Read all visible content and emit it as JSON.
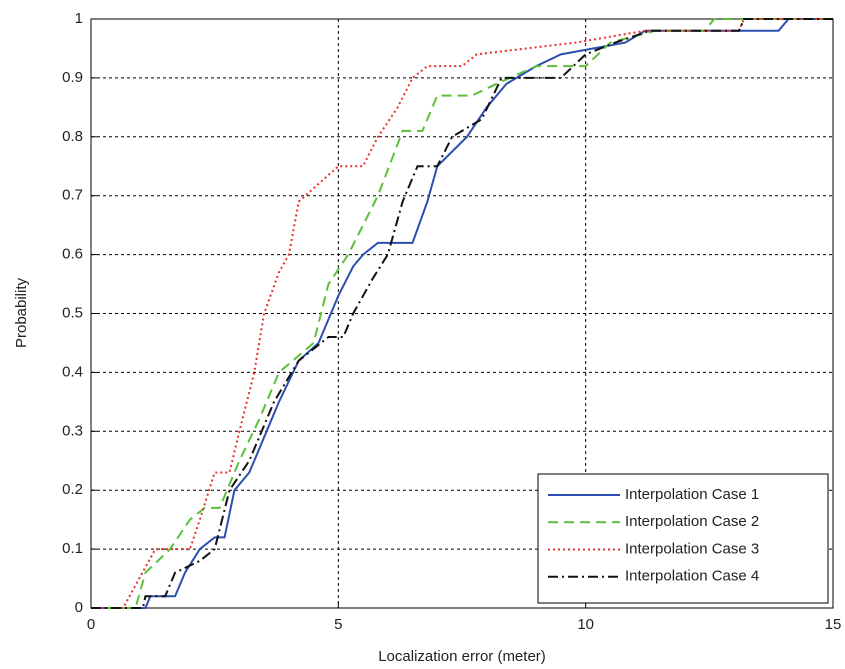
{
  "chart_data": {
    "type": "line",
    "xlabel": "Localization error (meter)",
    "ylabel": "Probability",
    "xlim": [
      0,
      15
    ],
    "ylim": [
      0,
      1
    ],
    "xticks": [
      0,
      5,
      10,
      15
    ],
    "yticks": [
      0,
      0.1,
      0.2,
      0.3,
      0.4,
      0.5,
      0.6,
      0.7,
      0.8,
      0.9,
      1
    ],
    "grid": true,
    "legend_loc": "lower right",
    "series": [
      {
        "name": "Interpolation Case 1",
        "color": "#2a4fb0",
        "dash": "solid",
        "x": [
          0,
          1.1,
          1.2,
          1.7,
          1.9,
          2.2,
          2.5,
          2.7,
          2.9,
          3.2,
          3.5,
          3.8,
          4.2,
          4.6,
          5.0,
          5.3,
          5.5,
          5.8,
          6.5,
          6.8,
          7.0,
          7.6,
          8.0,
          8.4,
          9.0,
          9.5,
          10.8,
          11.2,
          13.9,
          14.1,
          15
        ],
        "values": [
          0,
          0,
          0.02,
          0.02,
          0.06,
          0.1,
          0.12,
          0.12,
          0.2,
          0.23,
          0.29,
          0.35,
          0.42,
          0.45,
          0.53,
          0.58,
          0.6,
          0.62,
          0.62,
          0.69,
          0.75,
          0.8,
          0.85,
          0.89,
          0.92,
          0.94,
          0.96,
          0.98,
          0.98,
          1,
          1
        ]
      },
      {
        "name": "Interpolation Case 2",
        "color": "#5cbf3a",
        "dash": "dashed",
        "x": [
          0,
          0.9,
          1.1,
          1.6,
          2.0,
          2.3,
          2.6,
          3.0,
          3.4,
          3.8,
          4.5,
          4.8,
          5.2,
          5.5,
          5.8,
          6.3,
          6.7,
          7.0,
          7.7,
          8.2,
          9.0,
          10.0,
          10.5,
          11.4,
          12.4,
          12.6,
          15
        ],
        "values": [
          0,
          0,
          0.06,
          0.1,
          0.15,
          0.17,
          0.17,
          0.25,
          0.32,
          0.4,
          0.45,
          0.55,
          0.6,
          0.65,
          0.7,
          0.81,
          0.81,
          0.87,
          0.87,
          0.89,
          0.92,
          0.92,
          0.96,
          0.98,
          0.98,
          1,
          1
        ]
      },
      {
        "name": "Interpolation Case 3",
        "color": "#e8302a",
        "dash": "dotted",
        "x": [
          0,
          0.65,
          1.3,
          2.0,
          2.2,
          2.5,
          2.8,
          3.0,
          3.3,
          3.5,
          3.8,
          4.0,
          4.2,
          4.6,
          5.0,
          5.5,
          5.8,
          6.2,
          6.5,
          6.8,
          7.5,
          7.8,
          9.8,
          11.2,
          13.1,
          13.2,
          15
        ],
        "values": [
          0,
          0,
          0.1,
          0.1,
          0.15,
          0.23,
          0.23,
          0.3,
          0.4,
          0.5,
          0.57,
          0.6,
          0.69,
          0.72,
          0.75,
          0.75,
          0.8,
          0.85,
          0.9,
          0.92,
          0.92,
          0.94,
          0.96,
          0.98,
          0.98,
          1,
          1
        ]
      },
      {
        "name": "Interpolation Case 4",
        "color": "#111111",
        "dash": "dashdot",
        "x": [
          0,
          1.05,
          1.1,
          1.5,
          1.7,
          2.2,
          2.5,
          2.8,
          3.2,
          3.7,
          4.2,
          4.8,
          5.1,
          5.3,
          5.7,
          6.0,
          6.3,
          6.6,
          7.0,
          7.3,
          7.9,
          8.3,
          9.5,
          10.0,
          10.6,
          11.3,
          13.1,
          13.2,
          15
        ],
        "values": [
          0,
          0,
          0.02,
          0.02,
          0.06,
          0.08,
          0.1,
          0.2,
          0.25,
          0.35,
          0.42,
          0.46,
          0.46,
          0.5,
          0.56,
          0.6,
          0.69,
          0.75,
          0.75,
          0.8,
          0.83,
          0.9,
          0.9,
          0.94,
          0.96,
          0.98,
          0.98,
          1,
          1
        ]
      }
    ]
  }
}
